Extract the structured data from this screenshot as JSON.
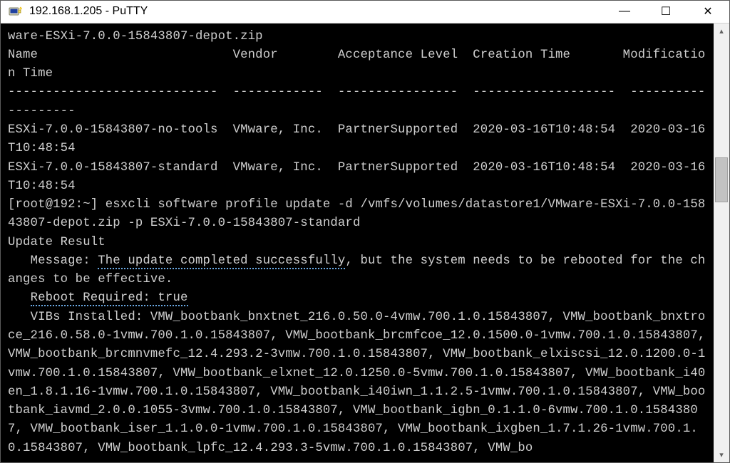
{
  "window": {
    "title": "192.168.1.205 - PuTTY",
    "background": "#ffffff",
    "border_color": "#5a5a5a"
  },
  "controls": {
    "minimize_glyph": "—",
    "maximize_glyph": "☐",
    "close_glyph": "✕"
  },
  "terminal": {
    "background": "#000000",
    "foreground": "#cfcfcf",
    "highlight_underline_color": "#6aa9e4",
    "font_family": "Consolas, Courier New, monospace",
    "font_size_pt": 13,
    "line1": "ware-ESXi-7.0.0-15843807-depot.zip",
    "header_row": "Name                          Vendor        Acceptance Level  Creation Time       Modification Time",
    "divider_row": "----------------------------  ------------  ----------------  -------------------  -------------------",
    "profile1": "ESXi-7.0.0-15843807-no-tools  VMware, Inc.  PartnerSupported  2020-03-16T10:48:54  2020-03-16T10:48:54",
    "profile2": "ESXi-7.0.0-15843807-standard  VMware, Inc.  PartnerSupported  2020-03-16T10:48:54  2020-03-16T10:48:54",
    "prompt_command": "[root@192:~] esxcli software profile update -d /vmfs/volumes/datastore1/VMware-ESXi-7.0.0-15843807-depot.zip -p ESXi-7.0.0-15843807-standard",
    "update_result_label": "Update Result",
    "message_prefix": "   Message: ",
    "message_hl": "The update completed successfully",
    "message_suffix": ", but the system needs to be rebooted for the changes to be effective.",
    "reboot_prefix": "   ",
    "reboot_hl": "Reboot Required: true",
    "vibs_text": "   VIBs Installed: VMW_bootbank_bnxtnet_216.0.50.0-4vmw.700.1.0.15843807, VMW_bootbank_bnxtroce_216.0.58.0-1vmw.700.1.0.15843807, VMW_bootbank_brcmfcoe_12.0.1500.0-1vmw.700.1.0.15843807, VMW_bootbank_brcmnvmefc_12.4.293.2-3vmw.700.1.0.15843807, VMW_bootbank_elxiscsi_12.0.1200.0-1vmw.700.1.0.15843807, VMW_bootbank_elxnet_12.0.1250.0-5vmw.700.1.0.15843807, VMW_bootbank_i40en_1.8.1.16-1vmw.700.1.0.15843807, VMW_bootbank_i40iwn_1.1.2.5-1vmw.700.1.0.15843807, VMW_bootbank_iavmd_2.0.0.1055-3vmw.700.1.0.15843807, VMW_bootbank_igbn_0.1.1.0-6vmw.700.1.0.15843807, VMW_bootbank_iser_1.1.0.0-1vmw.700.1.0.15843807, VMW_bootbank_ixgben_1.7.1.26-1vmw.700.1.0.15843807, VMW_bootbank_lpfc_12.4.293.3-5vmw.700.1.0.15843807, VMW_bo"
  },
  "scrollbar": {
    "track_color": "#f0f0f0",
    "thumb_color": "#c2c2c2",
    "thumb_top_pct": 29,
    "thumb_height_pct": 11,
    "arrow_up": "▴",
    "arrow_down": "▾"
  }
}
